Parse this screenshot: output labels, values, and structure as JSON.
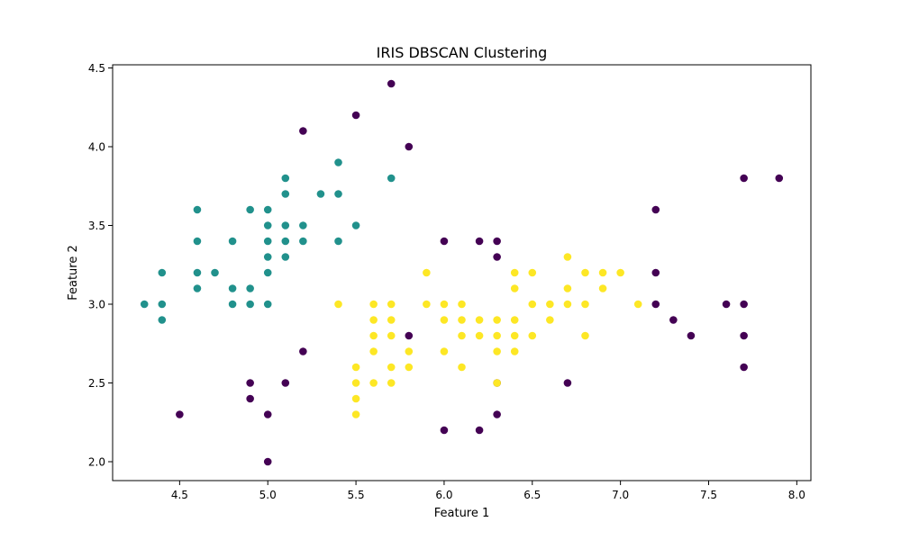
{
  "chart_data": {
    "type": "scatter",
    "title": "IRIS DBSCAN Clustering",
    "xlabel": "Feature 1",
    "ylabel": "Feature 2",
    "xlim": [
      4.12,
      8.08
    ],
    "ylim": [
      1.88,
      4.52
    ],
    "xticks": [
      4.5,
      5.0,
      5.5,
      6.0,
      6.5,
      7.0,
      7.5,
      8.0
    ],
    "xtick_labels": [
      "4.5",
      "5.0",
      "5.5",
      "6.0",
      "6.5",
      "7.0",
      "7.5",
      "8.0"
    ],
    "yticks": [
      2.0,
      2.5,
      3.0,
      3.5,
      4.0,
      4.5
    ],
    "ytick_labels": [
      "2.0",
      "2.5",
      "3.0",
      "3.5",
      "4.0",
      "4.5"
    ],
    "grid": false,
    "legend": "none",
    "series": [
      {
        "color": "#440154",
        "points": [
          [
            5.7,
            4.4
          ],
          [
            5.5,
            4.2
          ],
          [
            5.2,
            4.1
          ],
          [
            5.8,
            4.0
          ],
          [
            7.7,
            3.8
          ],
          [
            7.9,
            3.8
          ],
          [
            7.2,
            3.6
          ],
          [
            6.0,
            3.4
          ],
          [
            6.2,
            3.4
          ],
          [
            6.3,
            3.4
          ],
          [
            6.3,
            3.3
          ],
          [
            7.2,
            3.2
          ],
          [
            7.2,
            3.0
          ],
          [
            7.6,
            3.0
          ],
          [
            7.7,
            3.0
          ],
          [
            7.3,
            2.9
          ],
          [
            5.8,
            2.8
          ],
          [
            7.4,
            2.8
          ],
          [
            7.7,
            2.8
          ],
          [
            5.2,
            2.7
          ],
          [
            7.7,
            2.6
          ],
          [
            4.9,
            2.5
          ],
          [
            5.1,
            2.5
          ],
          [
            6.3,
            2.5
          ],
          [
            6.7,
            2.5
          ],
          [
            4.9,
            2.4
          ],
          [
            4.5,
            2.3
          ],
          [
            5.0,
            2.3
          ],
          [
            6.3,
            2.3
          ],
          [
            6.0,
            2.2
          ],
          [
            6.2,
            2.2
          ],
          [
            5.0,
            2.0
          ]
        ]
      },
      {
        "color": "#21918c",
        "points": [
          [
            5.4,
            3.9
          ],
          [
            5.1,
            3.8
          ],
          [
            5.7,
            3.8
          ],
          [
            5.1,
            3.7
          ],
          [
            5.3,
            3.7
          ],
          [
            5.4,
            3.7
          ],
          [
            4.6,
            3.6
          ],
          [
            4.9,
            3.6
          ],
          [
            5.0,
            3.6
          ],
          [
            5.0,
            3.5
          ],
          [
            5.1,
            3.5
          ],
          [
            5.2,
            3.5
          ],
          [
            5.5,
            3.5
          ],
          [
            4.6,
            3.4
          ],
          [
            4.8,
            3.4
          ],
          [
            5.0,
            3.4
          ],
          [
            5.1,
            3.4
          ],
          [
            5.2,
            3.4
          ],
          [
            5.4,
            3.4
          ],
          [
            5.0,
            3.3
          ],
          [
            5.1,
            3.3
          ],
          [
            4.4,
            3.2
          ],
          [
            4.6,
            3.2
          ],
          [
            4.7,
            3.2
          ],
          [
            5.0,
            3.2
          ],
          [
            4.6,
            3.1
          ],
          [
            4.8,
            3.1
          ],
          [
            4.9,
            3.1
          ],
          [
            4.3,
            3.0
          ],
          [
            4.4,
            3.0
          ],
          [
            4.8,
            3.0
          ],
          [
            4.9,
            3.0
          ],
          [
            5.0,
            3.0
          ],
          [
            4.4,
            2.9
          ]
        ]
      },
      {
        "color": "#fde725",
        "points": [
          [
            6.7,
            3.3
          ],
          [
            5.9,
            3.2
          ],
          [
            6.4,
            3.2
          ],
          [
            6.5,
            3.2
          ],
          [
            6.8,
            3.2
          ],
          [
            6.9,
            3.2
          ],
          [
            7.0,
            3.2
          ],
          [
            6.4,
            3.1
          ],
          [
            6.7,
            3.1
          ],
          [
            6.9,
            3.1
          ],
          [
            5.4,
            3.0
          ],
          [
            5.6,
            3.0
          ],
          [
            5.7,
            3.0
          ],
          [
            5.9,
            3.0
          ],
          [
            6.0,
            3.0
          ],
          [
            6.1,
            3.0
          ],
          [
            6.5,
            3.0
          ],
          [
            6.6,
            3.0
          ],
          [
            6.7,
            3.0
          ],
          [
            6.8,
            3.0
          ],
          [
            7.1,
            3.0
          ],
          [
            5.6,
            2.9
          ],
          [
            5.7,
            2.9
          ],
          [
            6.0,
            2.9
          ],
          [
            6.1,
            2.9
          ],
          [
            6.2,
            2.9
          ],
          [
            6.3,
            2.9
          ],
          [
            6.4,
            2.9
          ],
          [
            6.6,
            2.9
          ],
          [
            5.6,
            2.8
          ],
          [
            5.7,
            2.8
          ],
          [
            6.1,
            2.8
          ],
          [
            6.2,
            2.8
          ],
          [
            6.3,
            2.8
          ],
          [
            6.4,
            2.8
          ],
          [
            6.5,
            2.8
          ],
          [
            6.8,
            2.8
          ],
          [
            5.6,
            2.7
          ],
          [
            5.8,
            2.7
          ],
          [
            6.0,
            2.7
          ],
          [
            6.3,
            2.7
          ],
          [
            6.4,
            2.7
          ],
          [
            5.5,
            2.6
          ],
          [
            5.7,
            2.6
          ],
          [
            5.8,
            2.6
          ],
          [
            6.1,
            2.6
          ],
          [
            5.5,
            2.5
          ],
          [
            5.6,
            2.5
          ],
          [
            5.7,
            2.5
          ],
          [
            6.3,
            2.5
          ],
          [
            5.5,
            2.4
          ],
          [
            5.5,
            2.3
          ]
        ]
      }
    ]
  }
}
